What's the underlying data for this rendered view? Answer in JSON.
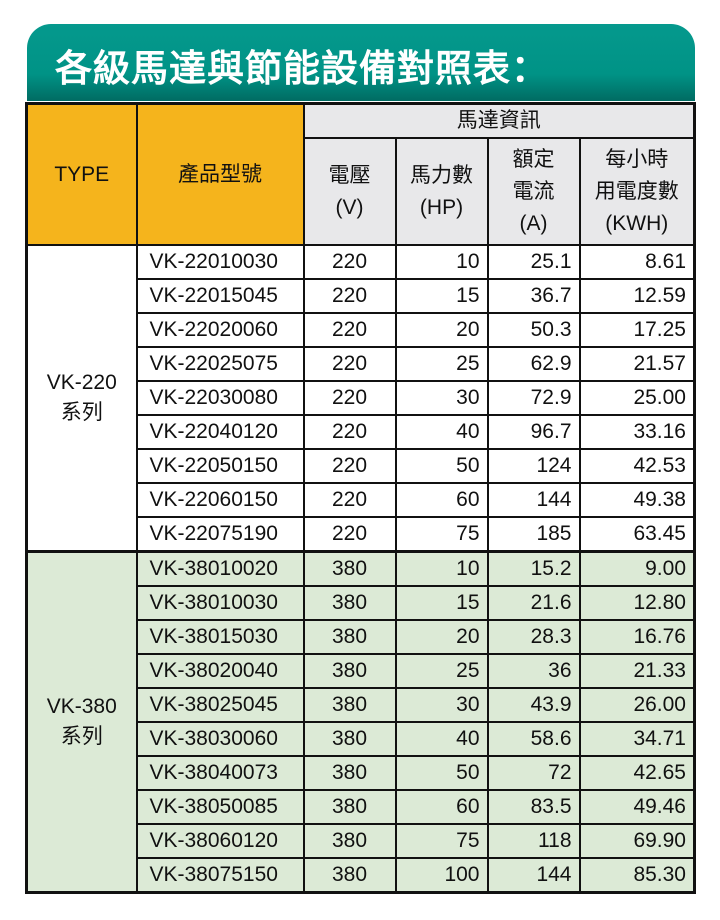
{
  "title": "各級馬達與節能設備對照表：",
  "colors": {
    "banner": "#009386",
    "header_orange": "#f5b41c",
    "header_grey": "#e8e8ea",
    "series_380_bg": "#dcead6"
  },
  "headers": {
    "type": "TYPE",
    "model": "產品型號",
    "group": "馬達資訊",
    "voltage": [
      "電壓",
      "(V)"
    ],
    "hp": [
      "馬力數",
      "(HP)"
    ],
    "current": [
      "額定",
      "電流",
      "(A)"
    ],
    "kwh": [
      "每小時",
      "用電度數",
      "(KWH)"
    ]
  },
  "series": [
    {
      "name": [
        "VK-220",
        "系列"
      ],
      "rows": [
        [
          "VK-22010030",
          "220",
          "10",
          "25.1",
          "8.61"
        ],
        [
          "VK-22015045",
          "220",
          "15",
          "36.7",
          "12.59"
        ],
        [
          "VK-22020060",
          "220",
          "20",
          "50.3",
          "17.25"
        ],
        [
          "VK-22025075",
          "220",
          "25",
          "62.9",
          "21.57"
        ],
        [
          "VK-22030080",
          "220",
          "30",
          "72.9",
          "25.00"
        ],
        [
          "VK-22040120",
          "220",
          "40",
          "96.7",
          "33.16"
        ],
        [
          "VK-22050150",
          "220",
          "50",
          "124",
          "42.53"
        ],
        [
          "VK-22060150",
          "220",
          "60",
          "144",
          "49.38"
        ],
        [
          "VK-22075190",
          "220",
          "75",
          "185",
          "63.45"
        ]
      ]
    },
    {
      "name": [
        "VK-380",
        "系列"
      ],
      "rows": [
        [
          "VK-38010020",
          "380",
          "10",
          "15.2",
          "9.00"
        ],
        [
          "VK-38010030",
          "380",
          "15",
          "21.6",
          "12.80"
        ],
        [
          "VK-38015030",
          "380",
          "20",
          "28.3",
          "16.76"
        ],
        [
          "VK-38020040",
          "380",
          "25",
          "36",
          "21.33"
        ],
        [
          "VK-38025045",
          "380",
          "30",
          "43.9",
          "26.00"
        ],
        [
          "VK-38030060",
          "380",
          "40",
          "58.6",
          "34.71"
        ],
        [
          "VK-38040073",
          "380",
          "50",
          "72",
          "42.65"
        ],
        [
          "VK-38050085",
          "380",
          "60",
          "83.5",
          "49.46"
        ],
        [
          "VK-38060120",
          "380",
          "75",
          "118",
          "69.90"
        ],
        [
          "VK-38075150",
          "380",
          "100",
          "144",
          "85.30"
        ]
      ]
    }
  ]
}
